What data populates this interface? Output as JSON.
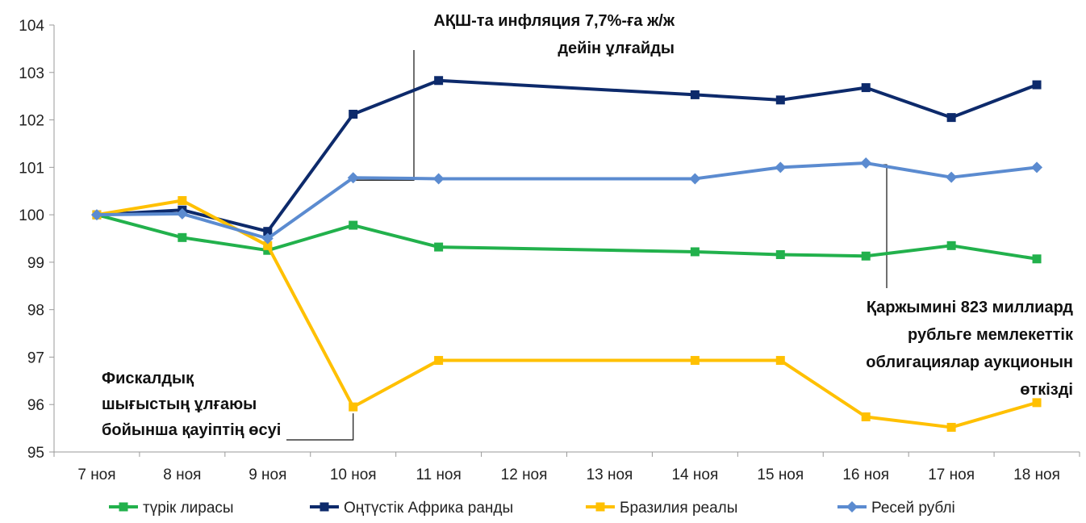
{
  "chart_data": {
    "type": "line",
    "categories": [
      "7 ноя",
      "8 ноя",
      "9 ноя",
      "10 ноя",
      "11 ноя",
      "12 ноя",
      "13 ноя",
      "14 ноя",
      "15 ноя",
      "16 ноя",
      "17 ноя",
      "18 ноя"
    ],
    "ylim": [
      95,
      104
    ],
    "yticks": [
      "95",
      "96",
      "97",
      "98",
      "99",
      "100",
      "101",
      "102",
      "103",
      "104"
    ],
    "grid": false,
    "legend_position": "bottom",
    "series": [
      {
        "name": "түрік лирасы",
        "color": "#22b14c",
        "marker": "square",
        "values": [
          100.0,
          99.52,
          99.25,
          99.78,
          99.32,
          null,
          null,
          99.22,
          99.16,
          99.13,
          99.35,
          99.07
        ]
      },
      {
        "name": "Оңтүстік Африка ранды",
        "color": "#0d2a6b",
        "marker": "square",
        "values": [
          100.0,
          100.1,
          99.65,
          102.12,
          102.83,
          null,
          null,
          102.53,
          102.42,
          102.68,
          102.05,
          102.74
        ]
      },
      {
        "name": "Бразилия реалы",
        "color": "#ffc000",
        "marker": "square",
        "values": [
          100.0,
          100.3,
          99.35,
          95.95,
          96.93,
          null,
          null,
          96.93,
          96.93,
          95.74,
          95.52,
          96.04
        ]
      },
      {
        "name": "Ресей рублі",
        "color": "#5b8bd0",
        "marker": "diamond",
        "values": [
          100.0,
          100.02,
          99.5,
          100.78,
          100.76,
          null,
          null,
          100.76,
          101.0,
          101.09,
          100.79,
          101.0
        ]
      }
    ],
    "annotations": [
      {
        "lines": [
          "АҚШ-та инфляция 7,7%-ға ж/ж",
          "дейін ұлғайды"
        ],
        "anchor_category": "10 ноя"
      },
      {
        "lines": [
          "Қаржымині 823 миллиард",
          "рубльге мемлекеттік",
          "облигациялар аукционын",
          "өткізді"
        ],
        "anchor_category": "16 ноя"
      },
      {
        "lines": [
          "Фискалдық",
          "шығыстың ұлғаюы",
          "бойынша қауіптің өсуі"
        ],
        "anchor_category": "10 ноя"
      }
    ]
  }
}
